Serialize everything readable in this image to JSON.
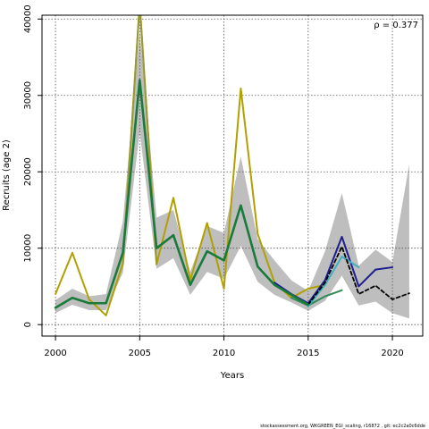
{
  "chart_data": {
    "type": "line",
    "title": "",
    "xlabel": "Years",
    "ylabel": "Recruits (age 2)",
    "xlim": [
      1999.2,
      2021.8
    ],
    "ylim": [
      -1500,
      40500
    ],
    "xticks": [
      2000,
      2005,
      2010,
      2015,
      2020
    ],
    "yticks": [
      0,
      10000,
      20000,
      30000,
      40000
    ],
    "grid": true,
    "annotation": "ρ = 0.377",
    "footer": "stockassessment.org, WKGREEN_EGI_scaling, r16872 , git: ec2c2a0c6dde",
    "band": {
      "color": "#bebebe",
      "x": [
        2000,
        2001,
        2002,
        2003,
        2004,
        2005,
        2006,
        2007,
        2008,
        2009,
        2010,
        2011,
        2012,
        2013,
        2014,
        2015,
        2016,
        2017,
        2018,
        2019,
        2020,
        2021
      ],
      "low": [
        1500,
        2600,
        1900,
        1900,
        6800,
        25200,
        7300,
        8700,
        3900,
        6900,
        6000,
        10300,
        5600,
        3900,
        2900,
        1800,
        3100,
        6400,
        2500,
        3000,
        1500,
        800
      ],
      "high": [
        3200,
        4700,
        3700,
        4000,
        13500,
        38500,
        14000,
        15000,
        6900,
        12900,
        12000,
        22000,
        11200,
        8400,
        5800,
        4400,
        9600,
        17200,
        7700,
        9800,
        8200,
        21000
      ]
    },
    "series": [
      {
        "color": "#b0a000",
        "dash": false,
        "width": 2,
        "x": [
          2000,
          2001,
          2002,
          2003,
          2004,
          2005,
          2006,
          2007,
          2008,
          2009,
          2010,
          2011,
          2012,
          2013,
          2014,
          2015,
          2016
        ],
        "y": [
          4000,
          9400,
          3300,
          1200,
          8000,
          42000,
          7900,
          16600,
          5800,
          13300,
          4700,
          30900,
          11900,
          5500,
          3500,
          4700,
          5200
        ]
      },
      {
        "color": "#999933",
        "dash": false,
        "width": 2,
        "x": [
          2004,
          2005,
          2006
        ],
        "y": [
          8000,
          42000,
          7900
        ]
      },
      {
        "color": "#1f1f8f",
        "dash": false,
        "width": 2,
        "x": [
          2013,
          2014,
          2015,
          2016,
          2017,
          2018,
          2019,
          2020
        ],
        "y": [
          5500,
          4000,
          2800,
          5800,
          11500,
          5000,
          7200,
          7500
        ]
      },
      {
        "color": "#2e8b57",
        "dash": false,
        "width": 2,
        "x": [
          2014,
          2015,
          2016,
          2017
        ],
        "y": [
          3500,
          2500,
          3700,
          4500
        ]
      },
      {
        "color": "#40b0c0",
        "dash": false,
        "width": 2,
        "x": [
          2015,
          2016,
          2017,
          2018
        ],
        "y": [
          2400,
          5200,
          8900,
          7500
        ]
      },
      {
        "color": "#000000",
        "dash": true,
        "width": 1.8,
        "x": [
          2015,
          2016,
          2017,
          2018,
          2019,
          2020,
          2021
        ],
        "y": [
          2600,
          5500,
          10200,
          4000,
          5100,
          3300,
          4100
        ]
      },
      {
        "color": "#1a7a3a",
        "dash": false,
        "width": 2.6,
        "x": [
          2000,
          2001,
          2002,
          2003,
          2004,
          2005,
          2006,
          2007,
          2008,
          2009,
          2010,
          2011,
          2012,
          2013,
          2014,
          2015
        ],
        "y": [
          2200,
          3500,
          2800,
          2800,
          9400,
          32000,
          10000,
          11700,
          5200,
          9600,
          8400,
          15600,
          7600,
          5200,
          3900,
          2600
        ]
      }
    ]
  }
}
